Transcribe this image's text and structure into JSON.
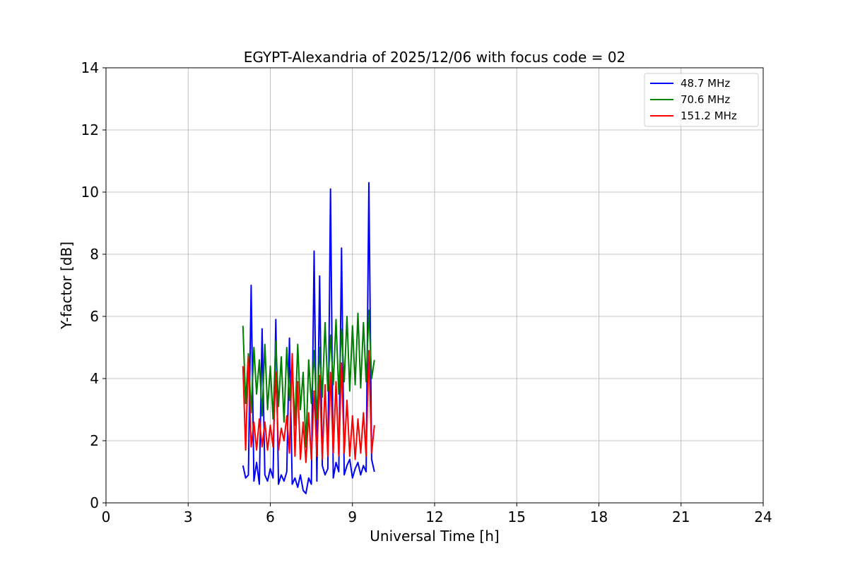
{
  "chart_data": {
    "type": "line",
    "title": "EGYPT-Alexandria of 2025/12/06 with focus code = 02",
    "xlabel": "Universal Time [h]",
    "ylabel": "Y-factor [dB]",
    "xlim": [
      0,
      24
    ],
    "ylim": [
      0,
      14
    ],
    "xticks": [
      0,
      3,
      6,
      9,
      12,
      15,
      18,
      21,
      24
    ],
    "yticks": [
      0,
      2,
      4,
      6,
      8,
      10,
      12,
      14
    ],
    "grid": true,
    "legend_position": "top-right",
    "series": [
      {
        "name": "  48.7 MHz",
        "color": "#0000ff",
        "x": [
          5.0,
          5.1,
          5.2,
          5.3,
          5.4,
          5.5,
          5.6,
          5.7,
          5.8,
          5.9,
          6.0,
          6.1,
          6.2,
          6.3,
          6.4,
          6.5,
          6.6,
          6.7,
          6.8,
          6.9,
          7.0,
          7.1,
          7.2,
          7.3,
          7.4,
          7.5,
          7.6,
          7.7,
          7.8,
          7.9,
          8.0,
          8.1,
          8.2,
          8.3,
          8.4,
          8.5,
          8.6,
          8.7,
          8.8,
          8.9,
          9.0,
          9.1,
          9.2,
          9.3,
          9.4,
          9.5,
          9.6,
          9.7,
          9.8
        ],
        "y": [
          1.2,
          0.8,
          0.9,
          7.0,
          0.7,
          1.3,
          0.6,
          5.6,
          0.9,
          0.7,
          1.1,
          0.8,
          5.9,
          0.6,
          0.9,
          0.7,
          1.0,
          5.3,
          0.6,
          0.8,
          0.5,
          0.9,
          0.4,
          0.3,
          0.8,
          0.6,
          8.1,
          0.7,
          7.3,
          1.2,
          0.9,
          1.1,
          10.1,
          0.8,
          1.3,
          1.0,
          8.2,
          0.9,
          1.2,
          1.4,
          0.8,
          1.1,
          1.3,
          0.9,
          1.2,
          1.0,
          10.3,
          1.4,
          1.0
        ]
      },
      {
        "name": "  70.6 MHz",
        "color": "#008000",
        "x": [
          5.0,
          5.1,
          5.2,
          5.3,
          5.4,
          5.5,
          5.6,
          5.7,
          5.8,
          5.9,
          6.0,
          6.1,
          6.2,
          6.3,
          6.4,
          6.5,
          6.6,
          6.7,
          6.8,
          6.9,
          7.0,
          7.1,
          7.2,
          7.3,
          7.4,
          7.5,
          7.6,
          7.7,
          7.8,
          7.9,
          8.0,
          8.1,
          8.2,
          8.3,
          8.4,
          8.5,
          8.6,
          8.7,
          8.8,
          8.9,
          9.0,
          9.1,
          9.2,
          9.3,
          9.4,
          9.5,
          9.6,
          9.7,
          9.8
        ],
        "y": [
          5.7,
          3.2,
          4.8,
          2.9,
          5.0,
          3.5,
          4.6,
          2.8,
          5.1,
          3.0,
          4.4,
          2.7,
          5.2,
          3.1,
          4.7,
          2.6,
          5.0,
          3.3,
          4.5,
          2.5,
          5.1,
          3.0,
          4.2,
          1.8,
          4.6,
          3.2,
          4.9,
          2.7,
          5.0,
          3.4,
          5.8,
          3.6,
          5.4,
          3.8,
          5.9,
          3.5,
          5.6,
          3.9,
          6.0,
          3.6,
          5.7,
          3.8,
          6.1,
          3.7,
          5.8,
          3.9,
          6.2,
          4.0,
          4.6
        ]
      },
      {
        "name": "  151.2 MHz",
        "color": "#ff0000",
        "x": [
          5.0,
          5.1,
          5.2,
          5.3,
          5.4,
          5.5,
          5.6,
          5.7,
          5.8,
          5.9,
          6.0,
          6.1,
          6.2,
          6.3,
          6.4,
          6.5,
          6.6,
          6.7,
          6.8,
          6.9,
          7.0,
          7.1,
          7.2,
          7.3,
          7.4,
          7.5,
          7.6,
          7.7,
          7.8,
          7.9,
          8.0,
          8.1,
          8.2,
          8.3,
          8.4,
          8.5,
          8.6,
          8.7,
          8.8,
          8.9,
          9.0,
          9.1,
          9.2,
          9.3,
          9.4,
          9.5,
          9.6,
          9.7,
          9.8
        ],
        "y": [
          4.4,
          1.7,
          4.7,
          1.8,
          2.6,
          1.7,
          2.7,
          1.8,
          2.6,
          1.7,
          2.5,
          1.8,
          4.2,
          1.7,
          2.4,
          2.0,
          2.8,
          1.6,
          4.8,
          1.5,
          3.9,
          1.4,
          2.6,
          1.3,
          2.9,
          1.4,
          3.6,
          1.5,
          4.1,
          1.4,
          3.8,
          1.5,
          4.2,
          1.6,
          3.9,
          1.5,
          4.5,
          1.6,
          3.3,
          1.5,
          2.8,
          1.4,
          2.7,
          1.6,
          2.9,
          1.5,
          4.9,
          1.6,
          2.5
        ]
      }
    ]
  }
}
